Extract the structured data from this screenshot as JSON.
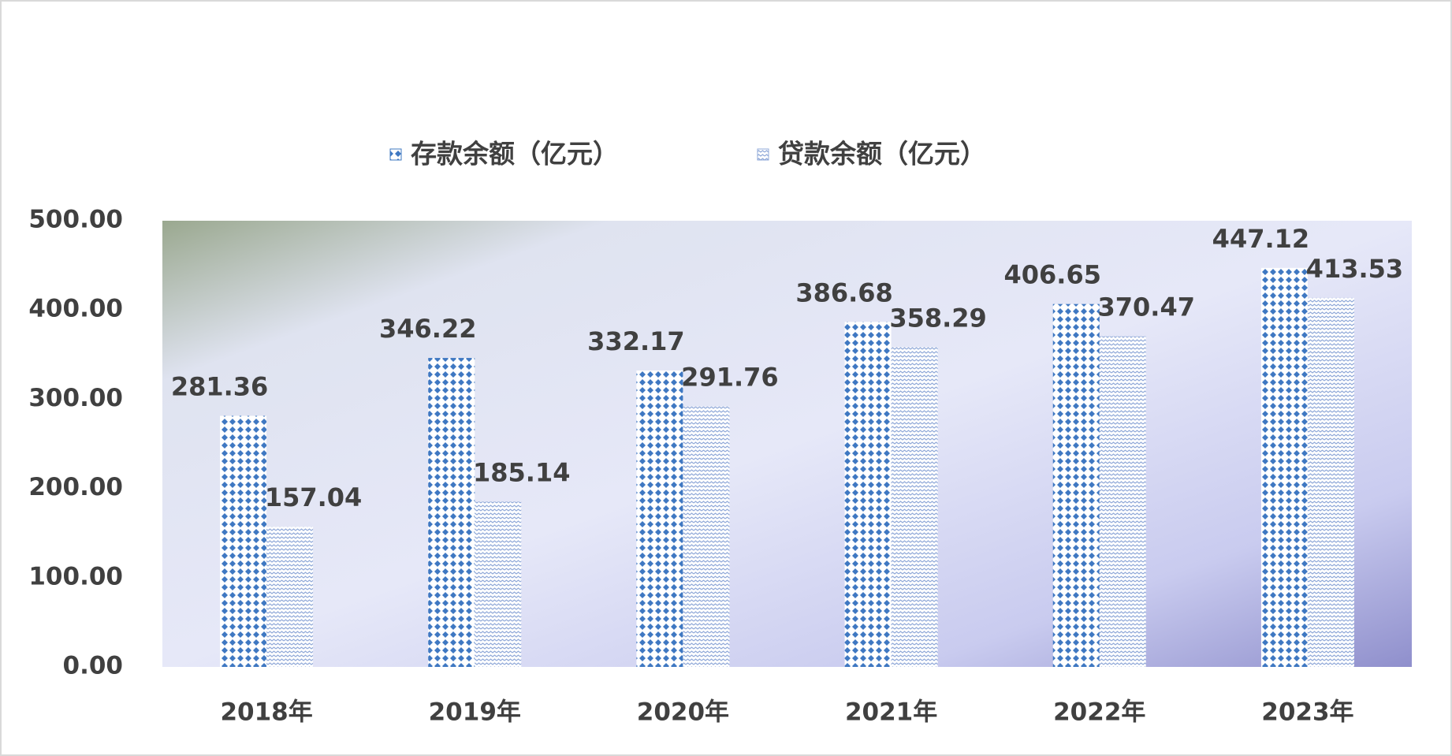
{
  "chart_data": {
    "type": "bar",
    "categories": [
      "2018年",
      "2019年",
      "2020年",
      "2021年",
      "2022年",
      "2023年"
    ],
    "series": [
      {
        "name": "存款余额（亿元）",
        "color": "#3f78c2",
        "values": [
          281.36,
          346.22,
          332.17,
          386.68,
          406.65,
          447.12
        ]
      },
      {
        "name": "贷款余额（亿元）",
        "color": "#8fa8d8",
        "values": [
          157.04,
          185.14,
          291.76,
          358.29,
          370.47,
          413.53
        ]
      }
    ],
    "ylim": [
      0,
      500
    ],
    "yticks": [
      {
        "value": 0,
        "label": "0.00"
      },
      {
        "value": 100,
        "label": "100.00"
      },
      {
        "value": 200,
        "label": "200.00"
      },
      {
        "value": 300,
        "label": "300.00"
      },
      {
        "value": 400,
        "label": "400.00"
      },
      {
        "value": 500,
        "label": "500.00"
      }
    ],
    "legend": "top"
  }
}
